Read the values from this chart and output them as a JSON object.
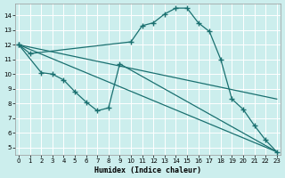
{
  "xlabel": "Humidex (Indice chaleur)",
  "xlim": [
    -0.3,
    23.3
  ],
  "ylim": [
    4.5,
    14.8
  ],
  "yticks": [
    5,
    6,
    7,
    8,
    9,
    10,
    11,
    12,
    13,
    14
  ],
  "xticks": [
    0,
    1,
    2,
    3,
    4,
    5,
    6,
    7,
    8,
    9,
    10,
    11,
    12,
    13,
    14,
    15,
    16,
    17,
    18,
    19,
    20,
    21,
    22,
    23
  ],
  "bg_color": "#cceeed",
  "line_color": "#1a7070",
  "grid_color": "#ffffff",
  "line1_x": [
    0,
    1,
    10,
    11,
    12,
    13,
    14,
    15,
    16,
    17,
    18,
    19,
    20,
    21,
    22,
    23
  ],
  "line1_y": [
    12.0,
    11.4,
    12.2,
    13.3,
    13.5,
    14.1,
    14.5,
    14.5,
    13.5,
    12.9,
    11.0,
    8.3,
    7.6,
    6.5,
    5.5,
    4.7
  ],
  "line2_x": [
    0,
    2,
    3,
    4,
    5,
    6,
    7,
    8,
    9,
    23
  ],
  "line2_y": [
    12.0,
    10.1,
    10.0,
    9.6,
    8.8,
    8.1,
    7.5,
    7.7,
    10.7,
    4.7
  ],
  "line2_mark_idx": [
    0,
    1,
    2,
    3,
    4,
    5,
    6,
    7,
    8
  ],
  "line3_x": [
    0,
    23
  ],
  "line3_y": [
    12.0,
    8.3
  ],
  "line4_x": [
    0,
    23
  ],
  "line4_y": [
    12.0,
    4.7
  ]
}
